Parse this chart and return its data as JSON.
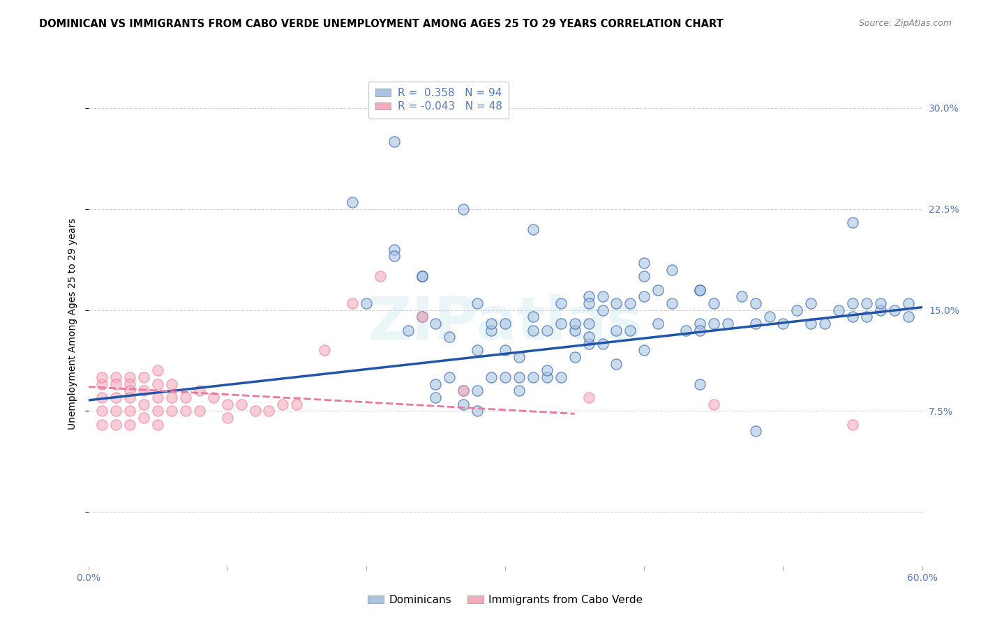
{
  "title": "DOMINICAN VS IMMIGRANTS FROM CABO VERDE UNEMPLOYMENT AMONG AGES 25 TO 29 YEARS CORRELATION CHART",
  "source": "Source: ZipAtlas.com",
  "ylabel": "Unemployment Among Ages 25 to 29 years",
  "xlim": [
    0.0,
    0.6
  ],
  "ylim": [
    -0.04,
    0.32
  ],
  "xticks": [
    0.0,
    0.1,
    0.2,
    0.3,
    0.4,
    0.5,
    0.6
  ],
  "xticklabels": [
    "0.0%",
    "",
    "",
    "",
    "",
    "",
    "60.0%"
  ],
  "yticks": [
    0.0,
    0.075,
    0.15,
    0.225,
    0.3
  ],
  "yticklabels": [
    "",
    "7.5%",
    "15.0%",
    "22.5%",
    "30.0%"
  ],
  "blue_R": "0.358",
  "blue_N": "94",
  "pink_R": "-0.043",
  "pink_N": "48",
  "blue_color": "#A8C4E0",
  "pink_color": "#F4ACBB",
  "blue_line_color": "#2255AA",
  "pink_line_color": "#EE7799",
  "legend_blue_label": "Dominicans",
  "legend_pink_label": "Immigrants from Cabo Verde",
  "watermark": "ZIPatlas",
  "blue_scatter_x": [
    0.19,
    0.22,
    0.22,
    0.23,
    0.24,
    0.24,
    0.25,
    0.25,
    0.25,
    0.26,
    0.26,
    0.27,
    0.27,
    0.28,
    0.28,
    0.28,
    0.28,
    0.29,
    0.29,
    0.29,
    0.3,
    0.3,
    0.3,
    0.31,
    0.31,
    0.31,
    0.32,
    0.32,
    0.32,
    0.33,
    0.33,
    0.33,
    0.34,
    0.34,
    0.34,
    0.35,
    0.35,
    0.35,
    0.36,
    0.36,
    0.36,
    0.37,
    0.37,
    0.37,
    0.38,
    0.38,
    0.38,
    0.39,
    0.39,
    0.4,
    0.4,
    0.41,
    0.41,
    0.42,
    0.42,
    0.43,
    0.44,
    0.44,
    0.45,
    0.45,
    0.46,
    0.47,
    0.48,
    0.48,
    0.49,
    0.5,
    0.51,
    0.52,
    0.52,
    0.53,
    0.54,
    0.55,
    0.55,
    0.56,
    0.56,
    0.57,
    0.57,
    0.58,
    0.59,
    0.59,
    0.22,
    0.27,
    0.32,
    0.36,
    0.4,
    0.4,
    0.44,
    0.44,
    0.48,
    0.55,
    0.2,
    0.24,
    0.36,
    0.44
  ],
  "blue_scatter_y": [
    0.23,
    0.195,
    0.19,
    0.135,
    0.145,
    0.175,
    0.085,
    0.095,
    0.14,
    0.1,
    0.13,
    0.08,
    0.09,
    0.075,
    0.09,
    0.12,
    0.155,
    0.1,
    0.135,
    0.14,
    0.1,
    0.12,
    0.14,
    0.09,
    0.1,
    0.115,
    0.1,
    0.135,
    0.145,
    0.1,
    0.105,
    0.135,
    0.1,
    0.14,
    0.155,
    0.115,
    0.135,
    0.14,
    0.125,
    0.14,
    0.16,
    0.125,
    0.15,
    0.16,
    0.11,
    0.135,
    0.155,
    0.135,
    0.155,
    0.12,
    0.16,
    0.14,
    0.165,
    0.155,
    0.18,
    0.135,
    0.14,
    0.165,
    0.14,
    0.155,
    0.14,
    0.16,
    0.14,
    0.155,
    0.145,
    0.14,
    0.15,
    0.14,
    0.155,
    0.14,
    0.15,
    0.145,
    0.155,
    0.145,
    0.155,
    0.15,
    0.155,
    0.15,
    0.145,
    0.155,
    0.275,
    0.225,
    0.21,
    0.155,
    0.175,
    0.185,
    0.135,
    0.165,
    0.06,
    0.215,
    0.155,
    0.175,
    0.13,
    0.095
  ],
  "pink_scatter_x": [
    0.01,
    0.01,
    0.01,
    0.01,
    0.01,
    0.02,
    0.02,
    0.02,
    0.02,
    0.02,
    0.03,
    0.03,
    0.03,
    0.03,
    0.03,
    0.03,
    0.04,
    0.04,
    0.04,
    0.04,
    0.05,
    0.05,
    0.05,
    0.05,
    0.05,
    0.06,
    0.06,
    0.06,
    0.07,
    0.07,
    0.08,
    0.08,
    0.09,
    0.1,
    0.1,
    0.11,
    0.12,
    0.13,
    0.14,
    0.15,
    0.17,
    0.19,
    0.21,
    0.24,
    0.27,
    0.36,
    0.45,
    0.55
  ],
  "pink_scatter_y": [
    0.095,
    0.1,
    0.085,
    0.075,
    0.065,
    0.1,
    0.095,
    0.085,
    0.075,
    0.065,
    0.1,
    0.095,
    0.09,
    0.085,
    0.075,
    0.065,
    0.1,
    0.09,
    0.08,
    0.07,
    0.105,
    0.095,
    0.085,
    0.075,
    0.065,
    0.095,
    0.085,
    0.075,
    0.085,
    0.075,
    0.09,
    0.075,
    0.085,
    0.08,
    0.07,
    0.08,
    0.075,
    0.075,
    0.08,
    0.08,
    0.12,
    0.155,
    0.175,
    0.145,
    0.09,
    0.085,
    0.08,
    0.065
  ],
  "blue_trendline_x": [
    0.0,
    0.6
  ],
  "blue_trendline_y": [
    0.083,
    0.152
  ],
  "pink_trendline_x": [
    0.0,
    0.35
  ],
  "pink_trendline_y": [
    0.093,
    0.073
  ],
  "grid_color": "#CCCCCC",
  "background_color": "#FFFFFF",
  "axis_tick_color": "#5577BB",
  "title_fontsize": 10.5,
  "source_fontsize": 9,
  "ylabel_fontsize": 10,
  "tick_fontsize": 10
}
